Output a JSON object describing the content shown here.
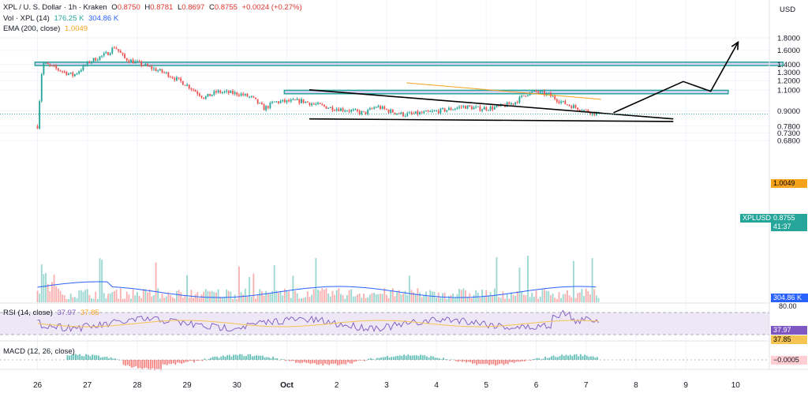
{
  "header": {
    "symbol": "XPL / U. S. Dollar · 1h · Kraken",
    "o_label": "O",
    "o": "0.8750",
    "h_label": "H",
    "h": "0.8781",
    "l_label": "L",
    "l": "0.8697",
    "c_label": "C",
    "c": "0.8755",
    "change": "+0.0024 (+0.27%)",
    "vol_label": "Vol · XPL (14)",
    "vol_1": "176.25 K",
    "vol_2": "304.86 K",
    "ema_label": "EMA (200, close)",
    "ema": "1.0049",
    "currency": "USD"
  },
  "rsi_legend": {
    "label": "RSI (14, close)",
    "value1": "37.97",
    "value2": "37.85"
  },
  "macd_legend": {
    "label": "MACD (12, 26, close)"
  },
  "price_tags": {
    "ema_value": "1.0049",
    "ticker": "XPLUSD",
    "last_price": "0.8755",
    "countdown": "41:37",
    "volume_value": "304.86 K",
    "rsi_axis_top": "80.00",
    "rsi_value1": "37.97",
    "rsi_value2": "37.85",
    "macd_value": "−0.0005"
  },
  "colors": {
    "up": "#26a69a",
    "down": "#ef5350",
    "ema": "#f6a21b",
    "volume_ma": "#2962ff",
    "zone_fill": "#d9d2f2",
    "zone_border": "#26a69a",
    "rsi_line": "#7e57c2",
    "rsi_ma": "#f6c453",
    "rsi_band": "#ede7f6"
  },
  "chart_data": [
    {
      "type": "candlestick",
      "title": "XPL / U. S. Dollar · 1h · Kraken",
      "y_scale": "log",
      "price_ticks": [
        "1.8000",
        "1.6000",
        "1.4000",
        "1.3000",
        "1.2000",
        "1.1000",
        "0.9000",
        "0.7800",
        "0.7300",
        "0.6800"
      ],
      "x_ticks": [
        "26",
        "27",
        "28",
        "29",
        "30",
        "Oct",
        "2",
        "3",
        "4",
        "5",
        "6",
        "7",
        "8",
        "9",
        "10"
      ],
      "ylim": [
        0.65,
        1.9
      ],
      "key_price_path": [
        {
          "t": 0.0,
          "p": 0.78
        },
        {
          "t": 0.1,
          "p": 1.42
        },
        {
          "t": 0.35,
          "p": 1.35
        },
        {
          "t": 0.72,
          "p": 1.26
        },
        {
          "t": 1.05,
          "p": 1.44
        },
        {
          "t": 1.4,
          "p": 1.55
        },
        {
          "t": 1.55,
          "p": 1.66
        },
        {
          "t": 1.75,
          "p": 1.48
        },
        {
          "t": 2.0,
          "p": 1.42
        },
        {
          "t": 2.25,
          "p": 1.36
        },
        {
          "t": 2.6,
          "p": 1.28
        },
        {
          "t": 3.0,
          "p": 1.15
        },
        {
          "t": 3.35,
          "p": 1.02
        },
        {
          "t": 3.6,
          "p": 1.08
        },
        {
          "t": 4.05,
          "p": 1.06
        },
        {
          "t": 4.3,
          "p": 1.02
        },
        {
          "t": 4.55,
          "p": 0.92
        },
        {
          "t": 4.75,
          "p": 0.98
        },
        {
          "t": 5.3,
          "p": 0.99
        },
        {
          "t": 5.55,
          "p": 0.96
        },
        {
          "t": 5.85,
          "p": 0.93
        },
        {
          "t": 6.2,
          "p": 0.91
        },
        {
          "t": 6.55,
          "p": 0.88
        },
        {
          "t": 6.8,
          "p": 0.94
        },
        {
          "t": 7.05,
          "p": 0.9
        },
        {
          "t": 7.35,
          "p": 0.87
        },
        {
          "t": 7.8,
          "p": 0.885
        },
        {
          "t": 8.2,
          "p": 0.91
        },
        {
          "t": 8.55,
          "p": 0.94
        },
        {
          "t": 8.85,
          "p": 0.92
        },
        {
          "t": 9.2,
          "p": 0.93
        },
        {
          "t": 9.55,
          "p": 0.97
        },
        {
          "t": 9.8,
          "p": 1.06
        },
        {
          "t": 10.0,
          "p": 1.08
        },
        {
          "t": 10.25,
          "p": 1.05
        },
        {
          "t": 10.55,
          "p": 0.97
        },
        {
          "t": 10.8,
          "p": 0.93
        },
        {
          "t": 11.05,
          "p": 0.895
        },
        {
          "t": 11.25,
          "p": 0.875
        }
      ],
      "ema200": [
        {
          "t": 7.4,
          "p": 1.175
        },
        {
          "t": 11.3,
          "p": 1.0049
        }
      ],
      "zones": [
        {
          "name": "upper-resistance-zone",
          "t_start": -0.05,
          "t_end": 14.95,
          "p_low": 1.385,
          "p_high": 1.43
        },
        {
          "name": "lower-resistance-zone",
          "t_start": 4.95,
          "t_end": 13.85,
          "p_low": 1.06,
          "p_high": 1.095
        }
      ],
      "trendlines": [
        {
          "name": "falling-resistance",
          "from": {
            "t": 5.45,
            "p": 1.1
          },
          "to": {
            "t": 12.75,
            "p": 0.835
          }
        },
        {
          "name": "support",
          "from": {
            "t": 5.45,
            "p": 0.835
          },
          "to": {
            "t": 12.75,
            "p": 0.815
          }
        }
      ],
      "projection_arrow": [
        {
          "t": 11.55,
          "p": 0.885
        },
        {
          "t": 12.95,
          "p": 1.19
        },
        {
          "t": 13.5,
          "p": 1.085
        },
        {
          "t": 14.05,
          "p": 1.73
        }
      ]
    },
    {
      "type": "bar",
      "title": "Vol · XPL (14)",
      "series": [
        {
          "name": "Vol · XPL (14)",
          "last": "304.86 K"
        }
      ]
    },
    {
      "type": "line",
      "title": "RSI (14, close)",
      "series": [
        {
          "name": "RSI (14, close)",
          "last": 37.97
        },
        {
          "name": "RSI-based MA",
          "last": 37.85
        }
      ],
      "ylim": [
        20,
        80
      ]
    },
    {
      "type": "bar",
      "title": "MACD (12, 26, close)",
      "series": [
        {
          "name": "MACD histogram",
          "last": -0.0005
        }
      ]
    }
  ]
}
